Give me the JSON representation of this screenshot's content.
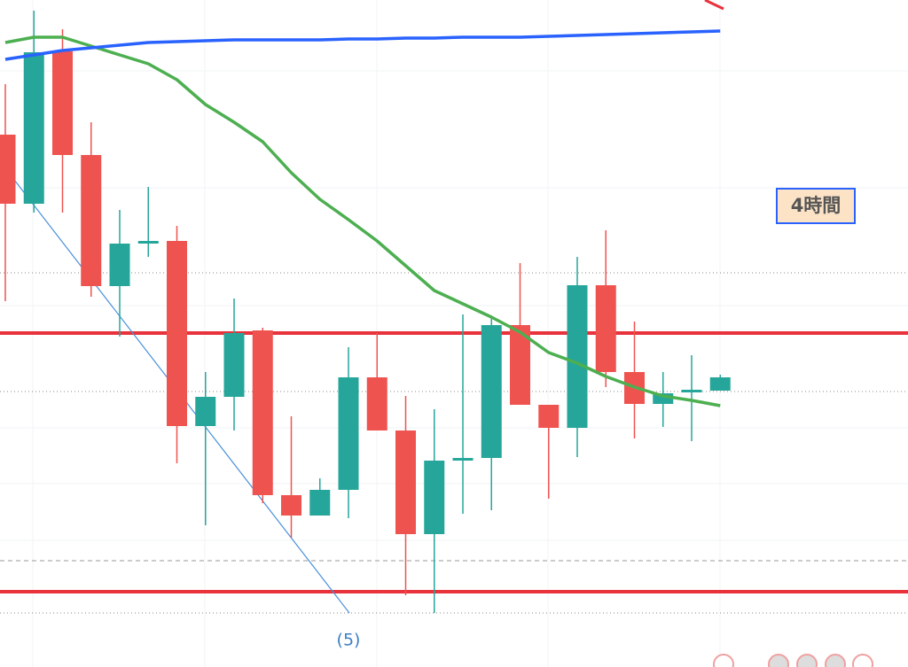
{
  "chart_data": {
    "type": "candlestick",
    "ylim": [
      0,
      753
    ],
    "up_color": "#26a69a",
    "down_color": "#ef5350",
    "open": [
      601,
      523,
      695,
      578,
      430,
      478,
      481,
      272,
      305,
      380,
      194,
      171,
      200,
      327,
      267,
      150,
      233,
      236,
      386,
      296,
      270,
      431,
      333,
      297,
      310,
      312
    ],
    "high": [
      658,
      741,
      720,
      615,
      516,
      542,
      498,
      333,
      416,
      383,
      283,
      213,
      361,
      377,
      306,
      291,
      398,
      396,
      456,
      296,
      463,
      493,
      390,
      333,
      352,
      330
    ],
    "low": [
      413,
      513,
      513,
      418,
      373,
      463,
      230,
      160,
      267,
      185,
      146,
      171,
      168,
      267,
      81,
      61,
      173,
      177,
      296,
      190,
      237,
      316,
      258,
      271,
      255,
      312
    ],
    "close": [
      523,
      694,
      578,
      430,
      478,
      481,
      272,
      305,
      377,
      194,
      171,
      200,
      327,
      267,
      150,
      233,
      236,
      386,
      296,
      270,
      431,
      333,
      297,
      309,
      313,
      327
    ],
    "series": [
      {
        "color": "#4caf50",
        "values": [
          705,
          711,
          711,
          701,
          691,
          681,
          663,
          635,
          615,
          593,
          558,
          528,
          505,
          481,
          453,
          425,
          410,
          395,
          378,
          355,
          343,
          328,
          316,
          306,
          301,
          295
        ]
      },
      {
        "color": "#2962ff",
        "values": [
          686,
          691,
          696,
          699,
          702,
          705,
          706,
          707,
          708,
          708,
          708,
          708,
          709,
          709,
          710,
          710,
          711,
          711,
          711,
          712,
          713,
          714,
          715,
          716,
          717,
          718
        ]
      }
    ],
    "levels": [
      {
        "value": 377,
        "color": "#e8323c",
        "style": "solid"
      },
      {
        "value": 85,
        "color": "#e8323c",
        "style": "solid"
      },
      {
        "value": 445,
        "color": "#888888",
        "style": "dotted"
      },
      {
        "value": 311,
        "color": "#888888",
        "style": "dotted"
      },
      {
        "value": 61,
        "color": "#888888",
        "style": "dotted"
      },
      {
        "value": 120,
        "color": "#999999",
        "style": "dashed"
      }
    ],
    "timeframe_label": "4時間",
    "wave_label": "(5)"
  }
}
